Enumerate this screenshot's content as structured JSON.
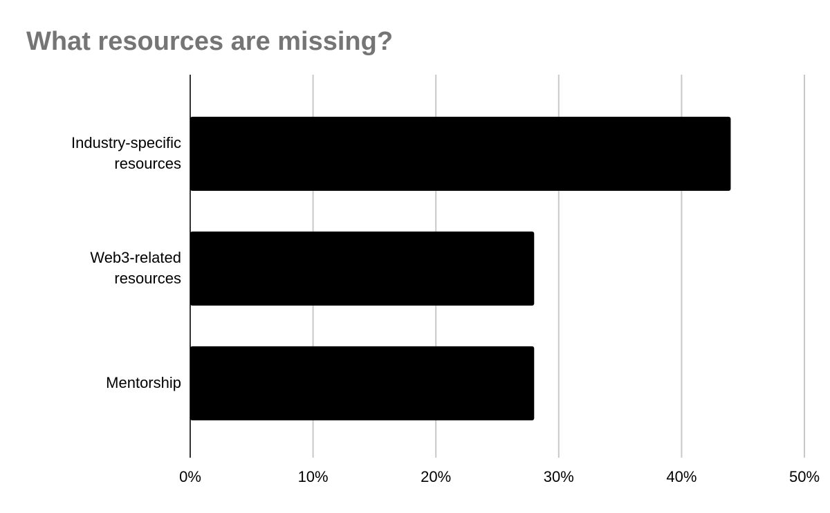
{
  "chart_data": {
    "type": "bar",
    "orientation": "horizontal",
    "title": "What resources are missing?",
    "categories": [
      "Industry-specific resources",
      "Web3-related resources",
      "Mentorship"
    ],
    "values": [
      44,
      28,
      28
    ],
    "color": "#000000",
    "xlim": [
      0,
      50
    ],
    "xticks": [
      {
        "value": 0,
        "label": "0%"
      },
      {
        "value": 10,
        "label": "10%"
      },
      {
        "value": 20,
        "label": "20%"
      },
      {
        "value": 30,
        "label": "30%"
      },
      {
        "value": 40,
        "label": "40%"
      },
      {
        "value": 50,
        "label": "50%"
      }
    ],
    "grid": true
  }
}
